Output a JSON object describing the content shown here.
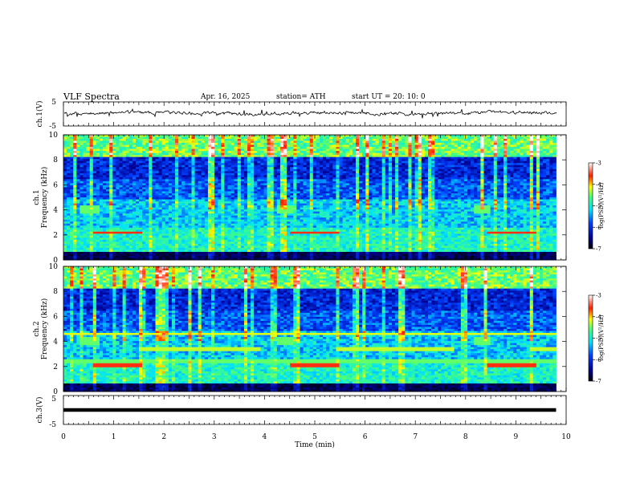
{
  "header": {
    "title": "VLF Spectra",
    "date": "Apr. 16, 2025",
    "station": "station= ATH",
    "start": "start UT = 20: 10: 0"
  },
  "chart_data": [
    {
      "type": "line",
      "name": "ch1-waveform",
      "ylabel": "ch.1(V)",
      "ylim": [
        -5,
        5
      ],
      "yticks": [
        "5",
        "-5"
      ],
      "description_level": "noisy trace hovering near 0 V, amplitude about 1 V",
      "xlim": [
        0,
        10
      ]
    },
    {
      "type": "heatmap",
      "name": "ch1-spectrogram",
      "ylabel": "ch.1",
      "ylabel2": "Frequency (kHz)",
      "ylim": [
        0,
        10
      ],
      "yticks": [
        "0",
        "2",
        "4",
        "6",
        "8",
        "10"
      ],
      "xlim": [
        0,
        9.8
      ],
      "colorbar": {
        "label": "log(PSD)(V²/Hz)",
        "range": [
          -7,
          -3
        ],
        "ticks": [
          "-3",
          "-4",
          "-5",
          "-6",
          "-7"
        ]
      }
    },
    {
      "type": "heatmap",
      "name": "ch2-spectrogram",
      "ylabel": "ch.2",
      "ylabel2": "Frequency (kHz)",
      "ylim": [
        0,
        10
      ],
      "yticks": [
        "0",
        "2",
        "4",
        "6",
        "8",
        "10"
      ],
      "xlim": [
        0,
        9.8
      ],
      "colorbar": {
        "label": "log(PSD)(V²/Hz)",
        "range": [
          -7,
          -3
        ],
        "ticks": [
          "-3",
          "-4",
          "-5",
          "-6",
          "-7"
        ]
      }
    },
    {
      "type": "line",
      "name": "ch3-waveform",
      "ylabel": "ch.3(V)",
      "ylim": [
        -5,
        5
      ],
      "yticks": [
        "5",
        "-5"
      ],
      "level": -2,
      "xlim": [
        0,
        9.8
      ],
      "xlabel": "Time (min)",
      "xticks": [
        "0",
        "1",
        "2",
        "3",
        "4",
        "5",
        "6",
        "7",
        "8",
        "9",
        "10"
      ],
      "x_range": [
        0,
        10
      ]
    }
  ]
}
